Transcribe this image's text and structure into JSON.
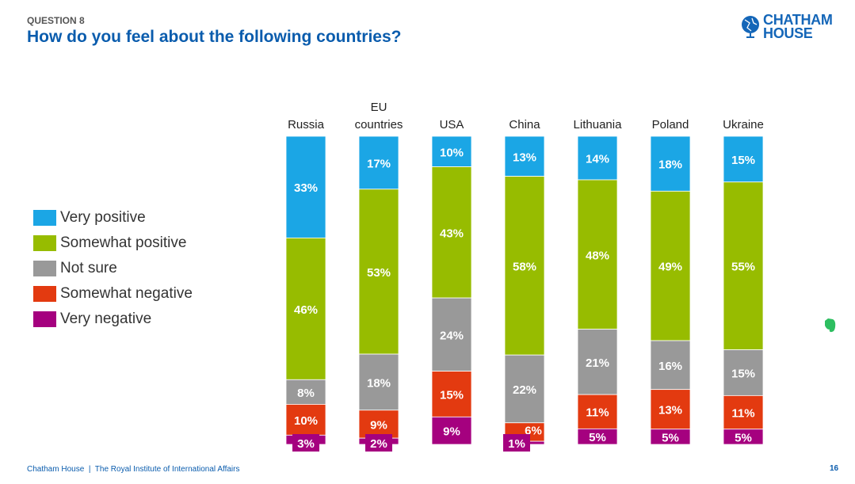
{
  "header": {
    "question_number": "QUESTION 8",
    "title": "How do you feel about the following countries?"
  },
  "logo": {
    "line1": "CHATHAM",
    "line2": "HOUSE"
  },
  "footer": {
    "text": "Chatham House  |  The Royal Institute of International Affairs",
    "page": "16"
  },
  "colors": {
    "very_positive": "#1ba6e5",
    "somewhat_positive": "#97bc00",
    "not_sure": "#999999",
    "somewhat_negative": "#e33a10",
    "very_negative": "#a5017f",
    "title": "#0a5cad"
  },
  "chart_data": {
    "type": "bar",
    "stacked": true,
    "orientation": "vertical",
    "title": "How do you feel about the following countries?",
    "categories": [
      [
        "Russia"
      ],
      [
        "EU",
        "countries"
      ],
      [
        "USA"
      ],
      [
        "China"
      ],
      [
        "Lithuania"
      ],
      [
        "Poland"
      ],
      [
        "Ukraine"
      ]
    ],
    "legend_position": "left",
    "series": [
      {
        "name": "Very positive",
        "color": "#1ba6e5",
        "values": [
          33,
          17,
          10,
          13,
          14,
          18,
          15
        ]
      },
      {
        "name": "Somewhat positive",
        "color": "#97bc00",
        "values": [
          46,
          53,
          43,
          58,
          48,
          49,
          55
        ]
      },
      {
        "name": "Not sure",
        "color": "#999999",
        "values": [
          8,
          18,
          24,
          22,
          21,
          16,
          15
        ]
      },
      {
        "name": "Somewhat negative",
        "color": "#e33a10",
        "values": [
          10,
          9,
          15,
          6,
          11,
          13,
          11
        ]
      },
      {
        "name": "Very negative",
        "color": "#a5017f",
        "values": [
          3,
          2,
          9,
          1,
          5,
          5,
          5
        ]
      }
    ],
    "value_suffix": "%"
  }
}
